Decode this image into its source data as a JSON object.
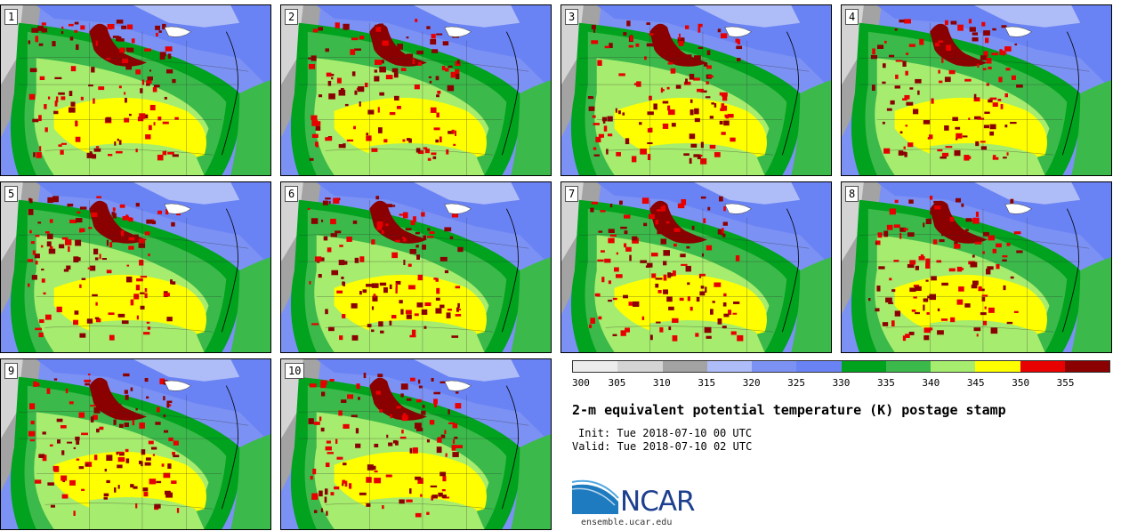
{
  "panels": [
    {
      "label": "1"
    },
    {
      "label": "2"
    },
    {
      "label": "3"
    },
    {
      "label": "4"
    },
    {
      "label": "5"
    },
    {
      "label": "6"
    },
    {
      "label": "7"
    },
    {
      "label": "8"
    },
    {
      "label": "9"
    },
    {
      "label": "10"
    }
  ],
  "colorbar": {
    "colors": [
      "#ececec",
      "#d4d4d4",
      "#a3a3a3",
      "#aebcf7",
      "#7c91f4",
      "#6a83f4",
      "#00a21e",
      "#3bb94a",
      "#a6ec6e",
      "#ffff00",
      "#e80000",
      "#8b0000"
    ],
    "ticks": [
      "300",
      "305",
      "310",
      "315",
      "320",
      "325",
      "330",
      "335",
      "340",
      "345",
      "350",
      "355"
    ]
  },
  "title": "2-m equivalent potential temperature (K) postage stamp",
  "init": "Init: Tue 2018-07-10 00 UTC",
  "valid": "Valid: Tue 2018-07-10 02 UTC",
  "logo": {
    "text": "NCAR",
    "brand_color": "#1d3f8f"
  },
  "site": "ensemble.ucar.edu"
}
